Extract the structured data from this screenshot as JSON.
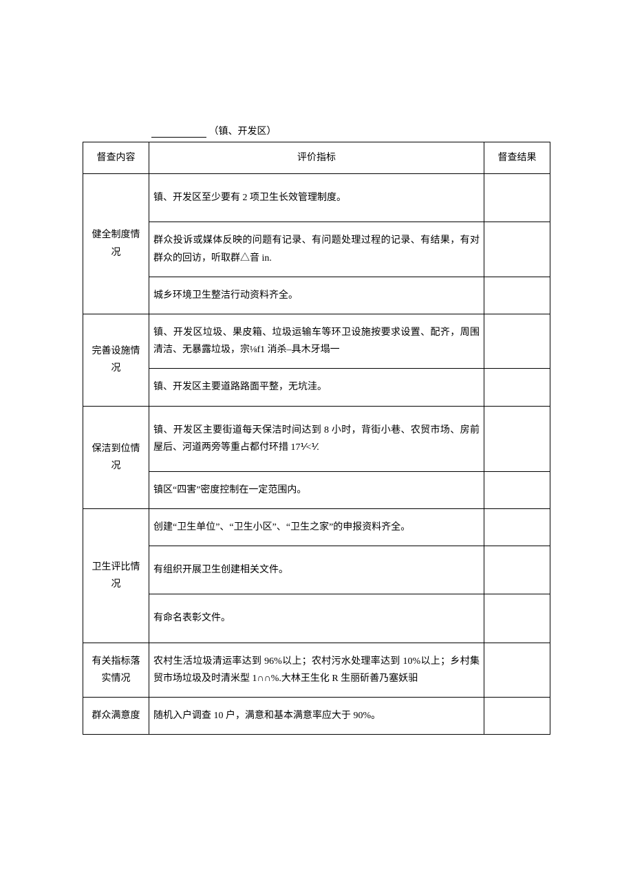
{
  "header": {
    "suffix": "（镇、开发区）"
  },
  "table": {
    "columns": [
      "督查内容",
      "评价指标",
      "督查结果"
    ],
    "sections": [
      {
        "category": "健全制度情况",
        "indicators": [
          "镇、开发区至少要有 2 项卫生长效管理制度。",
          "群众投诉或媒体反映的问题有记录、有问题处理过程的记录、有结果，有对群众的回访，听取群△音 in.",
          "城乡环境卫生整洁行动资料齐全。"
        ]
      },
      {
        "category": "完善设施情况",
        "indicators": [
          "镇、开发区垃圾、果皮箱、垃圾运输车等环卫设施按要求设置、配齐，周围清洁、无暴露垃圾，宗⅛f1 消杀–具木牙塌一",
          "镇、开发区主要道路路面平整，无坑洼。"
        ]
      },
      {
        "category": "保洁到位情况",
        "indicators": [
          "镇、开发区主要街道每天保洁时间达到 8 小时，背街小巷、农贸市场、房前屋后、河道两旁等重占都付环措 17⅟<⅟.",
          "镇区“四害”密度控制在一定范围内。"
        ]
      },
      {
        "category": "卫生评比情况",
        "indicators": [
          "创建“卫生单位”、“卫生小区”、“卫生之家”的申报资料齐全。",
          "有组织开展卫生创建相关文件。",
          "有命名表彰文件。"
        ]
      },
      {
        "category": "有关指标落实情况",
        "indicators": [
          "农村生活垃圾清运率达到 96%以上；农村污水处理率达到 10%以上；乡村集贸市场垃圾及时清米型 1∩∩%.大林王生化 R 生丽斫善乃塞妖驲"
        ]
      },
      {
        "category": "群众满意度",
        "indicators": [
          "随机入户调查 10 户，满意和基本满意率应大于 90%。"
        ]
      }
    ]
  },
  "style": {
    "background_color": "#ffffff",
    "text_color": "#000000",
    "border_color": "#000000",
    "font_family": "SimSun",
    "base_fontsize": 14
  }
}
